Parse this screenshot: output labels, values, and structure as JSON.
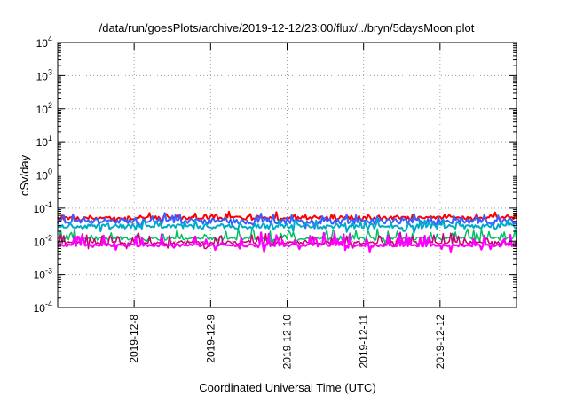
{
  "chart_data": {
    "type": "line",
    "title": "/data/run/goesPlots/archive/2019-12-12/23:00/flux/../bryn/5daysMoon.plot",
    "xlabel": "Coordinated Universal Time (UTC)",
    "ylabel": "cSv/day",
    "yscale": "log",
    "ylim": [
      0.0001,
      10000
    ],
    "xlim": [
      "2019-12-07T00:00",
      "2019-12-13T00:00"
    ],
    "y_ticks": [
      {
        "base": "10",
        "exp": "-4"
      },
      {
        "base": "10",
        "exp": "-3"
      },
      {
        "base": "10",
        "exp": "-2"
      },
      {
        "base": "10",
        "exp": "-1"
      },
      {
        "base": "10",
        "exp": "0"
      },
      {
        "base": "10",
        "exp": "1"
      },
      {
        "base": "10",
        "exp": "2"
      },
      {
        "base": "10",
        "exp": "3"
      },
      {
        "base": "10",
        "exp": "4"
      }
    ],
    "x_ticks": [
      "2019-12-8",
      "2019-12-9",
      "2019-12-10",
      "2019-12-11",
      "2019-12-12"
    ],
    "grid": true,
    "legend": "none",
    "series": [
      {
        "color": "#ff0000",
        "base": 0.05,
        "noise": 0.12,
        "spike": 0.45,
        "width": 2
      },
      {
        "color": "#3a5fff",
        "base": 0.04,
        "noise": 0.18,
        "spike": 0.55,
        "width": 2
      },
      {
        "color": "#00aacc",
        "base": 0.028,
        "noise": 0.15,
        "spike": 0.5,
        "width": 2
      },
      {
        "color": "#00c060",
        "base": 0.012,
        "noise": 0.12,
        "spike": 0.9,
        "width": 1.5
      },
      {
        "color": "#cc0077",
        "base": 0.009,
        "noise": 0.1,
        "spike": 0.9,
        "width": 1.5
      },
      {
        "color": "#ff00ff",
        "base": 0.0075,
        "noise": 0.08,
        "spike": 1.4,
        "width": 2.2
      }
    ]
  }
}
